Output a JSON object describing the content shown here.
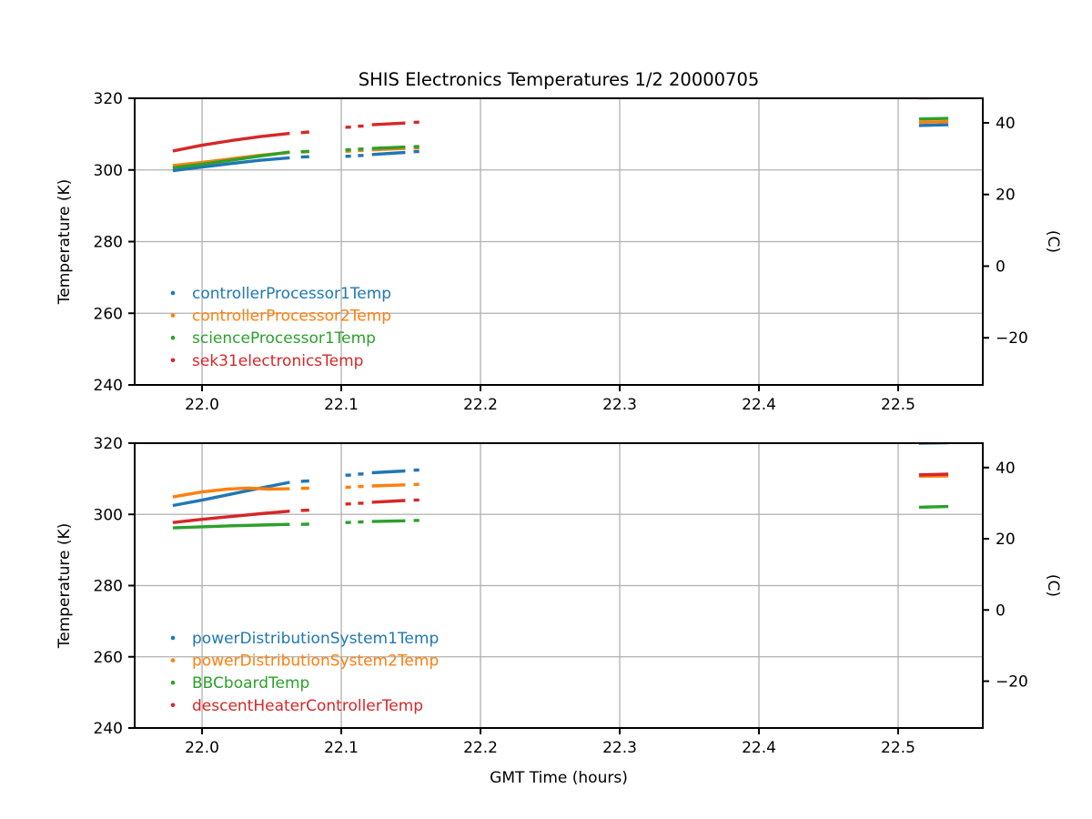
{
  "figure": {
    "title": "SHIS Electronics Temperatures 1/2 20000705",
    "background_color": "#ffffff",
    "grid_color": "#b0b0b0",
    "spine_color": "#000000"
  },
  "chart_data": [
    {
      "type": "line",
      "title": "SHIS Electronics Temperatures 1/2 20000705",
      "xlabel": "",
      "ylabel_left": "Temperature (K)",
      "ylabel_right": "(C)",
      "xlim": [
        21.9516,
        22.5608
      ],
      "ylim": [
        240,
        320
      ],
      "grid": true,
      "kelvin_offset": 273.15,
      "legend_position": "lower-left-inside",
      "xticks": [
        {
          "v": 22.0,
          "label": "22.0"
        },
        {
          "v": 22.1,
          "label": "22.1"
        },
        {
          "v": 22.2,
          "label": "22.2"
        },
        {
          "v": 22.3,
          "label": "22.3"
        },
        {
          "v": 22.4,
          "label": "22.4"
        },
        {
          "v": 22.5,
          "label": "22.5"
        }
      ],
      "yticks_left": [
        {
          "v": 240,
          "label": "240"
        },
        {
          "v": 260,
          "label": "260"
        },
        {
          "v": 280,
          "label": "280"
        },
        {
          "v": 300,
          "label": "300"
        },
        {
          "v": 320,
          "label": "320"
        }
      ],
      "yticks_right": [
        {
          "c": -20,
          "label": "−20"
        },
        {
          "c": 0,
          "label": "0"
        },
        {
          "c": 20,
          "label": "20"
        },
        {
          "c": 40,
          "label": "40"
        }
      ],
      "series": [
        {
          "name": "controllerProcessor1Temp",
          "color": "#1f77b4",
          "segments": [
            {
              "x": [
                21.979,
                22.0,
                22.021,
                22.042,
                22.063
              ],
              "y": [
                299.8,
                300.8,
                301.8,
                302.7,
                303.4
              ]
            },
            {
              "x": [
                22.071,
                22.077
              ],
              "y": [
                303.6,
                303.7
              ]
            },
            {
              "x": [
                22.103,
                22.107
              ],
              "y": [
                303.8,
                303.85
              ]
            },
            {
              "x": [
                22.112,
                22.116
              ],
              "y": [
                304.0,
                304.05
              ]
            },
            {
              "x": [
                22.122,
                22.146
              ],
              "y": [
                304.3,
                304.9
              ]
            },
            {
              "x": [
                22.152,
                22.156
              ],
              "y": [
                305.1,
                305.15
              ]
            },
            {
              "x": [
                22.515,
                22.536
              ],
              "y": [
                312.4,
                312.6
              ]
            }
          ]
        },
        {
          "name": "controllerProcessor2Temp",
          "color": "#ff7f0e",
          "segments": [
            {
              "x": [
                21.979,
                22.0,
                22.021,
                22.042,
                22.063
              ],
              "y": [
                301.2,
                302.1,
                303.1,
                304.1,
                304.9
              ]
            },
            {
              "x": [
                22.071,
                22.077
              ],
              "y": [
                305.0,
                305.1
              ]
            },
            {
              "x": [
                22.103,
                22.107
              ],
              "y": [
                305.2,
                305.25
              ]
            },
            {
              "x": [
                22.112,
                22.116
              ],
              "y": [
                305.4,
                305.45
              ]
            },
            {
              "x": [
                22.122,
                22.146
              ],
              "y": [
                305.6,
                306.0
              ]
            },
            {
              "x": [
                22.152,
                22.156
              ],
              "y": [
                306.1,
                306.15
              ]
            },
            {
              "x": [
                22.515,
                22.536
              ],
              "y": [
                313.3,
                313.5
              ]
            }
          ]
        },
        {
          "name": "scienceProcessor1Temp",
          "color": "#2ca02c",
          "segments": [
            {
              "x": [
                21.979,
                22.0,
                22.021,
                22.042,
                22.063
              ],
              "y": [
                300.6,
                301.6,
                302.7,
                303.9,
                305.0
              ]
            },
            {
              "x": [
                22.071,
                22.077
              ],
              "y": [
                305.1,
                305.2
              ]
            },
            {
              "x": [
                22.103,
                22.107
              ],
              "y": [
                305.6,
                305.65
              ]
            },
            {
              "x": [
                22.112,
                22.116
              ],
              "y": [
                305.8,
                305.85
              ]
            },
            {
              "x": [
                22.122,
                22.146
              ],
              "y": [
                306.0,
                306.4
              ]
            },
            {
              "x": [
                22.152,
                22.156
              ],
              "y": [
                306.5,
                306.55
              ]
            },
            {
              "x": [
                22.515,
                22.536
              ],
              "y": [
                314.2,
                314.4
              ]
            }
          ]
        },
        {
          "name": "sek31electronicsTemp",
          "color": "#d62728",
          "segments": [
            {
              "x": [
                21.979,
                22.0,
                22.021,
                22.042,
                22.063
              ],
              "y": [
                305.3,
                306.9,
                308.2,
                309.3,
                310.2
              ]
            },
            {
              "x": [
                22.071,
                22.077
              ],
              "y": [
                310.4,
                310.6
              ]
            },
            {
              "x": [
                22.103,
                22.107
              ],
              "y": [
                311.9,
                311.95
              ]
            },
            {
              "x": [
                22.112,
                22.116
              ],
              "y": [
                312.2,
                312.25
              ]
            },
            {
              "x": [
                22.122,
                22.146
              ],
              "y": [
                312.6,
                313.1
              ]
            },
            {
              "x": [
                22.152,
                22.156
              ],
              "y": [
                313.3,
                313.35
              ]
            },
            {
              "x": [
                22.515,
                22.536
              ],
              "y": [
                320.1,
                320.2
              ]
            }
          ]
        }
      ]
    },
    {
      "type": "line",
      "title": "",
      "xlabel": "GMT Time (hours)",
      "ylabel_left": "Temperature (K)",
      "ylabel_right": "(C)",
      "xlim": [
        21.9516,
        22.5608
      ],
      "ylim": [
        240,
        320
      ],
      "grid": true,
      "kelvin_offset": 273.15,
      "legend_position": "lower-left-inside",
      "xticks": [
        {
          "v": 22.0,
          "label": "22.0"
        },
        {
          "v": 22.1,
          "label": "22.1"
        },
        {
          "v": 22.2,
          "label": "22.2"
        },
        {
          "v": 22.3,
          "label": "22.3"
        },
        {
          "v": 22.4,
          "label": "22.4"
        },
        {
          "v": 22.5,
          "label": "22.5"
        }
      ],
      "yticks_left": [
        {
          "v": 240,
          "label": "240"
        },
        {
          "v": 260,
          "label": "260"
        },
        {
          "v": 280,
          "label": "280"
        },
        {
          "v": 300,
          "label": "300"
        },
        {
          "v": 320,
          "label": "320"
        }
      ],
      "yticks_right": [
        {
          "c": -20,
          "label": "−20"
        },
        {
          "c": 0,
          "label": "0"
        },
        {
          "c": 20,
          "label": "20"
        },
        {
          "c": 40,
          "label": "40"
        }
      ],
      "series": [
        {
          "name": "powerDistributionSystem1Temp",
          "color": "#1f77b4",
          "segments": [
            {
              "x": [
                21.979,
                22.0,
                22.021,
                22.042,
                22.063
              ],
              "y": [
                302.5,
                304.0,
                305.7,
                307.4,
                309.0
              ]
            },
            {
              "x": [
                22.071,
                22.077
              ],
              "y": [
                309.3,
                309.4
              ]
            },
            {
              "x": [
                22.103,
                22.107
              ],
              "y": [
                311.0,
                311.05
              ]
            },
            {
              "x": [
                22.112,
                22.116
              ],
              "y": [
                311.3,
                311.35
              ]
            },
            {
              "x": [
                22.122,
                22.146
              ],
              "y": [
                311.7,
                312.2
              ]
            },
            {
              "x": [
                22.152,
                22.156
              ],
              "y": [
                312.4,
                312.45
              ]
            },
            {
              "x": [
                22.515,
                22.536
              ],
              "y": [
                320.0,
                320.1
              ]
            }
          ]
        },
        {
          "name": "powerDistributionSystem2Temp",
          "color": "#ff7f0e",
          "segments": [
            {
              "x": [
                21.979,
                22.0,
                22.018,
                22.033,
                22.048,
                22.063
              ],
              "y": [
                304.9,
                306.3,
                307.1,
                307.4,
                307.1,
                307.2
              ]
            },
            {
              "x": [
                22.071,
                22.077
              ],
              "y": [
                307.3,
                307.35
              ]
            },
            {
              "x": [
                22.103,
                22.107
              ],
              "y": [
                307.6,
                307.65
              ]
            },
            {
              "x": [
                22.112,
                22.116
              ],
              "y": [
                307.8,
                307.85
              ]
            },
            {
              "x": [
                22.122,
                22.146
              ],
              "y": [
                308.0,
                308.3
              ]
            },
            {
              "x": [
                22.152,
                22.156
              ],
              "y": [
                308.4,
                308.45
              ]
            },
            {
              "x": [
                22.515,
                22.536
              ],
              "y": [
                310.7,
                310.8
              ]
            }
          ]
        },
        {
          "name": "BBCboardTemp",
          "color": "#2ca02c",
          "segments": [
            {
              "x": [
                21.979,
                22.0,
                22.021,
                22.042,
                22.063
              ],
              "y": [
                296.2,
                296.5,
                296.8,
                297.0,
                297.2
              ]
            },
            {
              "x": [
                22.071,
                22.077
              ],
              "y": [
                297.2,
                297.25
              ]
            },
            {
              "x": [
                22.103,
                22.107
              ],
              "y": [
                297.7,
                297.75
              ]
            },
            {
              "x": [
                22.112,
                22.116
              ],
              "y": [
                297.85,
                297.9
              ]
            },
            {
              "x": [
                22.122,
                22.146
              ],
              "y": [
                298.0,
                298.2
              ]
            },
            {
              "x": [
                22.152,
                22.156
              ],
              "y": [
                298.3,
                298.3
              ]
            },
            {
              "x": [
                22.515,
                22.536
              ],
              "y": [
                302.0,
                302.2
              ]
            }
          ]
        },
        {
          "name": "descentHeaterControllerTemp",
          "color": "#d62728",
          "segments": [
            {
              "x": [
                21.979,
                22.0,
                22.021,
                22.042,
                22.063
              ],
              "y": [
                297.7,
                298.6,
                299.4,
                300.2,
                300.9
              ]
            },
            {
              "x": [
                22.071,
                22.077
              ],
              "y": [
                301.1,
                301.2
              ]
            },
            {
              "x": [
                22.103,
                22.107
              ],
              "y": [
                302.9,
                302.95
              ]
            },
            {
              "x": [
                22.112,
                22.116
              ],
              "y": [
                303.1,
                303.15
              ]
            },
            {
              "x": [
                22.122,
                22.146
              ],
              "y": [
                303.4,
                303.9
              ]
            },
            {
              "x": [
                22.152,
                22.156
              ],
              "y": [
                304.0,
                304.05
              ]
            },
            {
              "x": [
                22.515,
                22.536
              ],
              "y": [
                311.1,
                311.3
              ]
            }
          ]
        }
      ]
    }
  ]
}
